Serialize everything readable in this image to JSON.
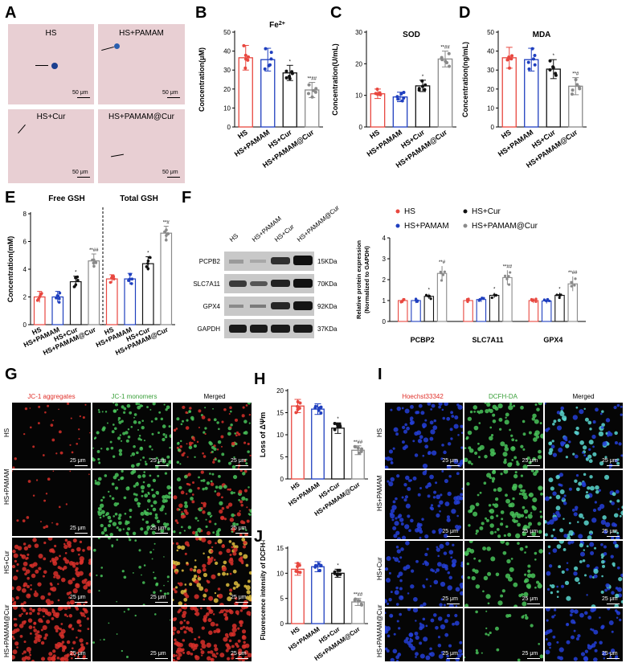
{
  "panels": {
    "A": {
      "label": "A",
      "tiles": [
        {
          "caption": "HS",
          "scale": "50 μm"
        },
        {
          "caption": "HS+PAMAM",
          "scale": "50 μm"
        },
        {
          "caption": "HS+Cur",
          "scale": "50 μm"
        },
        {
          "caption": "HS+PAMAM@Cur",
          "scale": "50 μm"
        }
      ]
    },
    "B": {
      "label": "B"
    },
    "C": {
      "label": "C"
    },
    "D": {
      "label": "D"
    },
    "E": {
      "label": "E"
    },
    "F": {
      "label": "F",
      "lanes": [
        "HS",
        "HS+PAMAM",
        "HS+Cur",
        "HS+PAMAM@Cur"
      ],
      "proteins": [
        {
          "name": "PCPB2",
          "kda": "15KDa"
        },
        {
          "name": "SLC7A11",
          "kda": "70KDa"
        },
        {
          "name": "GPX4",
          "kda": "92KDa"
        },
        {
          "name": "GAPDH",
          "kda": "37KDa"
        }
      ]
    },
    "G": {
      "label": "G",
      "channels": [
        "JC-1 aggregates",
        "JC-1 monomers",
        "Merged"
      ],
      "rows": [
        "HS",
        "HS+PAMAM",
        "HS+Cur",
        "HS+PAMAM@Cur"
      ],
      "scale": "25 μm"
    },
    "H": {
      "label": "H"
    },
    "I": {
      "label": "I",
      "channels": [
        "Hoechst33342",
        "DCFH-DA",
        "Merged"
      ],
      "rows": [
        "HS",
        "HS+PAMAM",
        "HS+Cur",
        "HS+PAMAM@Cur"
      ],
      "scale": "25 μm"
    },
    "J": {
      "label": "J"
    }
  },
  "colors": {
    "HS": "#e8473f",
    "HS+PAMAM": "#1f3fbf",
    "HS+Cur": "#111111",
    "HS+PAMAM@Cur": "#8a8a8a"
  },
  "chart_data": [
    {
      "id": "B",
      "type": "bar",
      "title": "Fe2+",
      "ylabel": "Concentration(μM)",
      "ylim": [
        0,
        50
      ],
      "yticks": [
        0,
        10,
        20,
        30,
        40,
        50
      ],
      "categories": [
        "HS",
        "HS+PAMAM",
        "HS+Cur",
        "HS+PAMAM@Cur"
      ],
      "values": [
        36.5,
        35.5,
        28.5,
        19.5
      ],
      "errors": [
        6.5,
        6,
        4,
        4
      ],
      "annotations": [
        "",
        "",
        "*",
        "**##"
      ]
    },
    {
      "id": "C",
      "type": "bar",
      "title": "SOD",
      "ylabel": "Concentration(U/mL)",
      "ylim": [
        0,
        30
      ],
      "yticks": [
        0,
        10,
        20,
        30
      ],
      "categories": [
        "HS",
        "HS+PAMAM",
        "HS+Cur",
        "HS+PAMAM@Cur"
      ],
      "values": [
        10.5,
        9.5,
        13,
        21.5
      ],
      "errors": [
        1.5,
        1.5,
        1.8,
        2.5
      ],
      "annotations": [
        "",
        "",
        "*",
        "**##"
      ]
    },
    {
      "id": "D",
      "type": "bar",
      "title": "MDA",
      "ylabel": "Concentration(ng/mL)",
      "ylim": [
        0,
        50
      ],
      "yticks": [
        0,
        10,
        20,
        30,
        40,
        50
      ],
      "categories": [
        "HS",
        "HS+PAMAM",
        "HS+Cur",
        "HS+PAMAM@Cur"
      ],
      "values": [
        36.5,
        35.5,
        30.5,
        21.5
      ],
      "errors": [
        5.5,
        6,
        5,
        4.5
      ],
      "annotations": [
        "",
        "",
        "*",
        "**#"
      ]
    },
    {
      "id": "E",
      "type": "bar",
      "ylabel": "Concentration(mM)",
      "ylim": [
        0,
        8
      ],
      "yticks": [
        0,
        2,
        4,
        6,
        8
      ],
      "groups": [
        "Free GSH",
        "Total GSH"
      ],
      "categories": [
        "HS",
        "HS+PAMAM",
        "HS+Cur",
        "HS+PAMAM@Cur"
      ],
      "series": [
        {
          "group": "Free GSH",
          "values": [
            2.0,
            2.0,
            3.1,
            4.6
          ],
          "errors": [
            0.4,
            0.4,
            0.4,
            0.5
          ],
          "annotations": [
            "",
            "",
            "*",
            "**##"
          ]
        },
        {
          "group": "Total GSH",
          "values": [
            3.3,
            3.3,
            4.4,
            6.6
          ],
          "errors": [
            0.3,
            0.4,
            0.5,
            0.5
          ],
          "annotations": [
            "",
            "",
            "*",
            "**#"
          ]
        }
      ]
    },
    {
      "id": "F",
      "type": "bar",
      "ylabel": "Relative protein expression\n(Normalized to GAPDH)",
      "ylim": [
        0,
        4
      ],
      "yticks": [
        0,
        1,
        2,
        3,
        4
      ],
      "groups": [
        "PCBP2",
        "SLC7A11",
        "GPX4"
      ],
      "legend": [
        "HS",
        "HS+PAMAM",
        "HS+Cur",
        "HS+PAMAM@Cur"
      ],
      "series": [
        {
          "name": "HS",
          "values": [
            1.0,
            1.0,
            1.0
          ]
        },
        {
          "name": "HS+PAMAM",
          "values": [
            1.0,
            1.05,
            0.98
          ]
        },
        {
          "name": "HS+Cur",
          "values": [
            1.2,
            1.25,
            1.25
          ]
        },
        {
          "name": "HS+PAMAM@Cur",
          "values": [
            2.3,
            2.1,
            1.8
          ]
        }
      ],
      "annotations": [
        [
          "",
          "",
          "*",
          "**#"
        ],
        [
          "",
          "",
          "*",
          "**##"
        ],
        [
          "",
          "",
          "*",
          "**##"
        ]
      ]
    },
    {
      "id": "H",
      "type": "bar",
      "ylabel": "Loss of ΔΨm",
      "ylim": [
        0,
        20
      ],
      "yticks": [
        0,
        5,
        10,
        15,
        20
      ],
      "categories": [
        "HS",
        "HS+PAMAM",
        "HS+Cur",
        "HS+PAMAM@Cur"
      ],
      "values": [
        16.5,
        15.8,
        11.5,
        6.5
      ],
      "errors": [
        1.5,
        1.2,
        1.2,
        1.0
      ],
      "annotations": [
        "",
        "",
        "*",
        "**##"
      ]
    },
    {
      "id": "J",
      "type": "bar",
      "ylabel": "Fluorescence intensity of DCFH-DA",
      "ylim": [
        0,
        15
      ],
      "yticks": [
        0,
        5,
        10,
        15
      ],
      "categories": [
        "HS",
        "HS+PAMAM",
        "HS+Cur",
        "HS+PAMAM@Cur"
      ],
      "values": [
        10.8,
        11.3,
        10.0,
        4.3
      ],
      "errors": [
        1.2,
        1.0,
        0.8,
        0.7
      ],
      "annotations": [
        "",
        "",
        "*",
        "**##"
      ]
    }
  ]
}
